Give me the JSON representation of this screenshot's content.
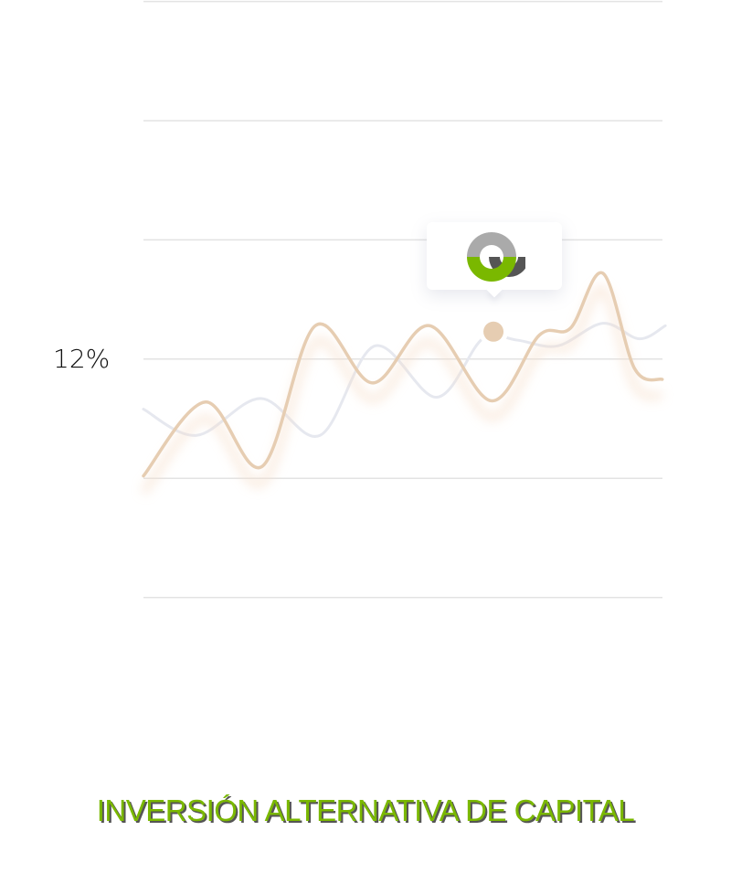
{
  "chart_data": {
    "type": "line",
    "title": "",
    "xlabel": "",
    "ylabel": "",
    "ylim": [
      0,
      5
    ],
    "grid": true,
    "y_tick_labels": [
      {
        "value": 3,
        "label": "12%"
      }
    ],
    "x": [
      0,
      1.19,
      2.28,
      3.3,
      4.4,
      5.49,
      6.68,
      7.6,
      8.2,
      8.82,
      9.43,
      9.96
    ],
    "series": [
      {
        "color": "#e6cdb2",
        "values": [
          2.02,
          2.64,
          2.1,
          3.28,
          2.8,
          3.28,
          2.65,
          3.2,
          3.26,
          3.72,
          2.92,
          2.83
        ]
      },
      {
        "color": "#e6e8ef",
        "x": [
          0,
          1.02,
          2.25,
          3.39,
          4.44,
          5.63,
          6.51,
          7.16,
          7.95,
          8.82,
          9.52,
          10.02
        ],
        "values": [
          2.58,
          2.36,
          2.67,
          2.36,
          3.11,
          2.68,
          3.17,
          3.16,
          3.11,
          3.3,
          3.17,
          3.28
        ]
      }
    ],
    "highlight_point": {
      "x": 6.72,
      "y": 3.23,
      "color": "#e6cdb2"
    }
  },
  "tooltip": {
    "logo": "company-logo"
  },
  "footer": {
    "title": "INVERSIÓN ALTERNATIVA DE CAPITAL",
    "color": "#7ab800"
  }
}
